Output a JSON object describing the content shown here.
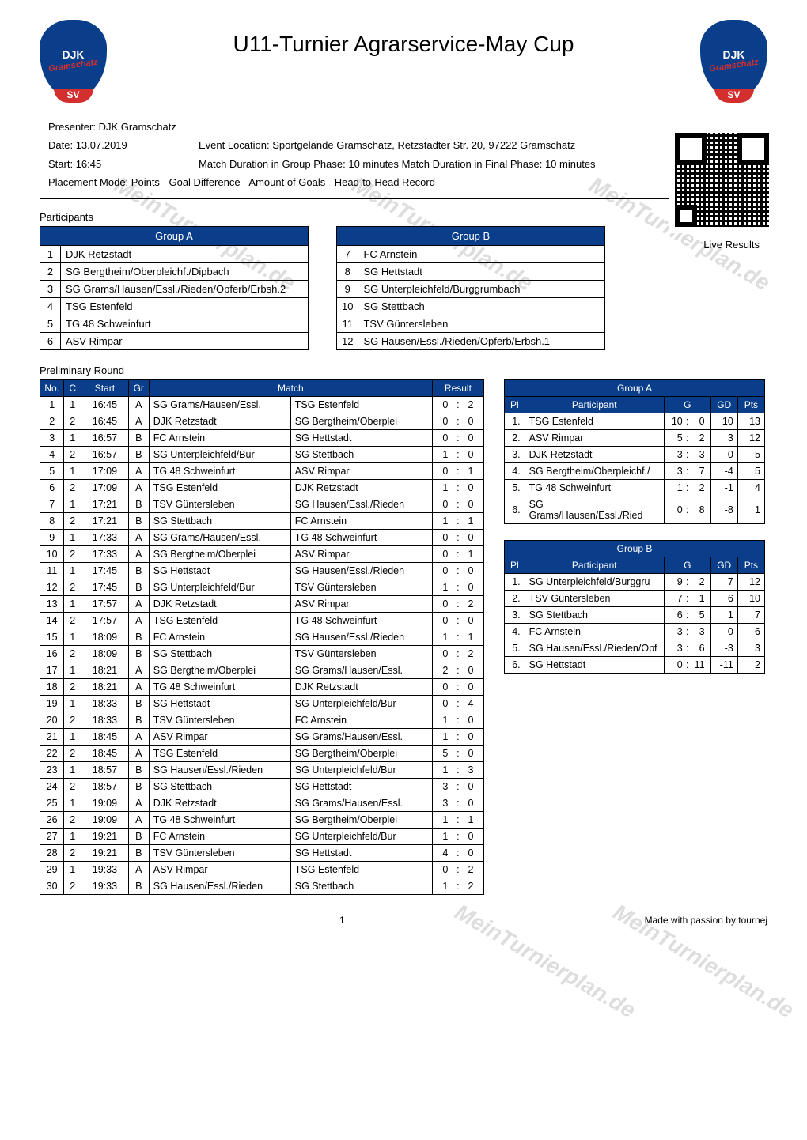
{
  "title": "U11-Turnier Agrarservice-May Cup",
  "logo": {
    "djk": "DJK",
    "name": "Gramschatz",
    "sv": "SV"
  },
  "info": {
    "presenter_label": "Presenter:",
    "presenter": "DJK Gramschatz",
    "date_label": "Date:",
    "date": "13.07.2019",
    "event_loc_label": "Event Location:",
    "event_loc": "Sportgelände Gramschatz, Retzstadter Str. 20, 97222 Gramschatz",
    "start_label": "Start:",
    "start": "16:45",
    "duration_label": "Match Duration in Group Phase:",
    "duration_group": "10 minutes",
    "duration_final_label": "Match Duration in Final Phase:",
    "duration_final": "10 minutes",
    "placement_label": "Placement Mode:",
    "placement": "Points - Goal Difference - Amount of Goals - Head-to-Head Record"
  },
  "live_results": "Live Results",
  "participants_label": "Participants",
  "group_a_label": "Group A",
  "group_b_label": "Group B",
  "group_a": [
    {
      "n": "1",
      "name": "DJK Retzstadt"
    },
    {
      "n": "2",
      "name": "SG Bergtheim/Oberpleichf./Dipbach"
    },
    {
      "n": "3",
      "name": "SG Grams/Hausen/Essl./Rieden/Opferb/Erbsh.2"
    },
    {
      "n": "4",
      "name": "TSG Estenfeld"
    },
    {
      "n": "5",
      "name": "TG 48 Schweinfurt"
    },
    {
      "n": "6",
      "name": "ASV Rimpar"
    }
  ],
  "group_b": [
    {
      "n": "7",
      "name": "FC Arnstein"
    },
    {
      "n": "8",
      "name": "SG Hettstadt"
    },
    {
      "n": "9",
      "name": "SG Unterpleichfeld/Burggrumbach"
    },
    {
      "n": "10",
      "name": "SG Stettbach"
    },
    {
      "n": "11",
      "name": "TSV Güntersleben"
    },
    {
      "n": "12",
      "name": "SG Hausen/Essl./Rieden/Opferb/Erbsh.1"
    }
  ],
  "prelim_label": "Preliminary Round",
  "sched_headers": {
    "no": "No.",
    "c": "C",
    "start": "Start",
    "gr": "Gr",
    "match": "Match",
    "result": "Result"
  },
  "schedule": [
    {
      "no": "1",
      "c": "1",
      "start": "16:45",
      "gr": "A",
      "h": "SG Grams/Hausen/Essl.",
      "a": "TSG Estenfeld",
      "hs": "0",
      "as": "2"
    },
    {
      "no": "2",
      "c": "2",
      "start": "16:45",
      "gr": "A",
      "h": "DJK Retzstadt",
      "a": "SG Bergtheim/Oberplei",
      "hs": "0",
      "as": "0"
    },
    {
      "no": "3",
      "c": "1",
      "start": "16:57",
      "gr": "B",
      "h": "FC Arnstein",
      "a": "SG Hettstadt",
      "hs": "0",
      "as": "0"
    },
    {
      "no": "4",
      "c": "2",
      "start": "16:57",
      "gr": "B",
      "h": "SG Unterpleichfeld/Bur",
      "a": "SG Stettbach",
      "hs": "1",
      "as": "0"
    },
    {
      "no": "5",
      "c": "1",
      "start": "17:09",
      "gr": "A",
      "h": "TG 48 Schweinfurt",
      "a": "ASV Rimpar",
      "hs": "0",
      "as": "1"
    },
    {
      "no": "6",
      "c": "2",
      "start": "17:09",
      "gr": "A",
      "h": "TSG Estenfeld",
      "a": "DJK Retzstadt",
      "hs": "1",
      "as": "0"
    },
    {
      "no": "7",
      "c": "1",
      "start": "17:21",
      "gr": "B",
      "h": "TSV Güntersleben",
      "a": "SG Hausen/Essl./Rieden",
      "hs": "0",
      "as": "0"
    },
    {
      "no": "8",
      "c": "2",
      "start": "17:21",
      "gr": "B",
      "h": "SG Stettbach",
      "a": "FC Arnstein",
      "hs": "1",
      "as": "1"
    },
    {
      "no": "9",
      "c": "1",
      "start": "17:33",
      "gr": "A",
      "h": "SG Grams/Hausen/Essl.",
      "a": "TG 48 Schweinfurt",
      "hs": "0",
      "as": "0"
    },
    {
      "no": "10",
      "c": "2",
      "start": "17:33",
      "gr": "A",
      "h": "SG Bergtheim/Oberplei",
      "a": "ASV Rimpar",
      "hs": "0",
      "as": "1"
    },
    {
      "no": "11",
      "c": "1",
      "start": "17:45",
      "gr": "B",
      "h": "SG Hettstadt",
      "a": "SG Hausen/Essl./Rieden",
      "hs": "0",
      "as": "0"
    },
    {
      "no": "12",
      "c": "2",
      "start": "17:45",
      "gr": "B",
      "h": "SG Unterpleichfeld/Bur",
      "a": "TSV Güntersleben",
      "hs": "1",
      "as": "0"
    },
    {
      "no": "13",
      "c": "1",
      "start": "17:57",
      "gr": "A",
      "h": "DJK Retzstadt",
      "a": "ASV Rimpar",
      "hs": "0",
      "as": "2"
    },
    {
      "no": "14",
      "c": "2",
      "start": "17:57",
      "gr": "A",
      "h": "TSG Estenfeld",
      "a": "TG 48 Schweinfurt",
      "hs": "0",
      "as": "0"
    },
    {
      "no": "15",
      "c": "1",
      "start": "18:09",
      "gr": "B",
      "h": "FC Arnstein",
      "a": "SG Hausen/Essl./Rieden",
      "hs": "1",
      "as": "1"
    },
    {
      "no": "16",
      "c": "2",
      "start": "18:09",
      "gr": "B",
      "h": "SG Stettbach",
      "a": "TSV Güntersleben",
      "hs": "0",
      "as": "2"
    },
    {
      "no": "17",
      "c": "1",
      "start": "18:21",
      "gr": "A",
      "h": "SG Bergtheim/Oberplei",
      "a": "SG Grams/Hausen/Essl.",
      "hs": "2",
      "as": "0"
    },
    {
      "no": "18",
      "c": "2",
      "start": "18:21",
      "gr": "A",
      "h": "TG 48 Schweinfurt",
      "a": "DJK Retzstadt",
      "hs": "0",
      "as": "0"
    },
    {
      "no": "19",
      "c": "1",
      "start": "18:33",
      "gr": "B",
      "h": "SG Hettstadt",
      "a": "SG Unterpleichfeld/Bur",
      "hs": "0",
      "as": "4"
    },
    {
      "no": "20",
      "c": "2",
      "start": "18:33",
      "gr": "B",
      "h": "TSV Güntersleben",
      "a": "FC Arnstein",
      "hs": "1",
      "as": "0"
    },
    {
      "no": "21",
      "c": "1",
      "start": "18:45",
      "gr": "A",
      "h": "ASV Rimpar",
      "a": "SG Grams/Hausen/Essl.",
      "hs": "1",
      "as": "0"
    },
    {
      "no": "22",
      "c": "2",
      "start": "18:45",
      "gr": "A",
      "h": "TSG Estenfeld",
      "a": "SG Bergtheim/Oberplei",
      "hs": "5",
      "as": "0"
    },
    {
      "no": "23",
      "c": "1",
      "start": "18:57",
      "gr": "B",
      "h": "SG Hausen/Essl./Rieden",
      "a": "SG Unterpleichfeld/Bur",
      "hs": "1",
      "as": "3"
    },
    {
      "no": "24",
      "c": "2",
      "start": "18:57",
      "gr": "B",
      "h": "SG Stettbach",
      "a": "SG Hettstadt",
      "hs": "3",
      "as": "0"
    },
    {
      "no": "25",
      "c": "1",
      "start": "19:09",
      "gr": "A",
      "h": "DJK Retzstadt",
      "a": "SG Grams/Hausen/Essl.",
      "hs": "3",
      "as": "0"
    },
    {
      "no": "26",
      "c": "2",
      "start": "19:09",
      "gr": "A",
      "h": "TG 48 Schweinfurt",
      "a": "SG Bergtheim/Oberplei",
      "hs": "1",
      "as": "1"
    },
    {
      "no": "27",
      "c": "1",
      "start": "19:21",
      "gr": "B",
      "h": "FC Arnstein",
      "a": "SG Unterpleichfeld/Bur",
      "hs": "1",
      "as": "0"
    },
    {
      "no": "28",
      "c": "2",
      "start": "19:21",
      "gr": "B",
      "h": "TSV Güntersleben",
      "a": "SG Hettstadt",
      "hs": "4",
      "as": "0"
    },
    {
      "no": "29",
      "c": "1",
      "start": "19:33",
      "gr": "A",
      "h": "ASV Rimpar",
      "a": "TSG Estenfeld",
      "hs": "0",
      "as": "2"
    },
    {
      "no": "30",
      "c": "2",
      "start": "19:33",
      "gr": "B",
      "h": "SG Hausen/Essl./Rieden",
      "a": "SG Stettbach",
      "hs": "1",
      "as": "2"
    }
  ],
  "stand_headers": {
    "pl": "Pl",
    "part": "Participant",
    "g": "G",
    "gd": "GD",
    "pts": "Pts"
  },
  "standings_a": [
    {
      "pl": "1.",
      "name": "TSG Estenfeld",
      "gf": "10",
      "ga": "0",
      "gd": "10",
      "pts": "13"
    },
    {
      "pl": "2.",
      "name": "ASV Rimpar",
      "gf": "5",
      "ga": "2",
      "gd": "3",
      "pts": "12"
    },
    {
      "pl": "3.",
      "name": "DJK Retzstadt",
      "gf": "3",
      "ga": "3",
      "gd": "0",
      "pts": "5"
    },
    {
      "pl": "4.",
      "name": "SG Bergtheim/Oberpleichf./",
      "gf": "3",
      "ga": "7",
      "gd": "-4",
      "pts": "5"
    },
    {
      "pl": "5.",
      "name": "TG 48 Schweinfurt",
      "gf": "1",
      "ga": "2",
      "gd": "-1",
      "pts": "4"
    },
    {
      "pl": "6.",
      "name": "SG Grams/Hausen/Essl./Ried",
      "gf": "0",
      "ga": "8",
      "gd": "-8",
      "pts": "1"
    }
  ],
  "standings_b": [
    {
      "pl": "1.",
      "name": "SG Unterpleichfeld/Burggru",
      "gf": "9",
      "ga": "2",
      "gd": "7",
      "pts": "12"
    },
    {
      "pl": "2.",
      "name": "TSV Güntersleben",
      "gf": "7",
      "ga": "1",
      "gd": "6",
      "pts": "10"
    },
    {
      "pl": "3.",
      "name": "SG Stettbach",
      "gf": "6",
      "ga": "5",
      "gd": "1",
      "pts": "7"
    },
    {
      "pl": "4.",
      "name": "FC Arnstein",
      "gf": "3",
      "ga": "3",
      "gd": "0",
      "pts": "6"
    },
    {
      "pl": "5.",
      "name": "SG Hausen/Essl./Rieden/Opf",
      "gf": "3",
      "ga": "6",
      "gd": "-3",
      "pts": "3"
    },
    {
      "pl": "6.",
      "name": "SG Hettstadt",
      "gf": "0",
      "ga": "11",
      "gd": "-11",
      "pts": "2"
    }
  ],
  "footer": {
    "page": "1",
    "credit": "Made with passion by tournej"
  },
  "watermark": "MeinTurnierplan.de",
  "colors": {
    "header_bg": "#0a3e8a",
    "header_fg": "#ffffff",
    "border": "#000000"
  }
}
